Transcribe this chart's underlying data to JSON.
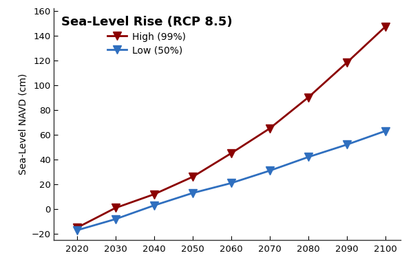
{
  "title": "Sea-Level Rise (RCP 8.5)",
  "ylabel": "Sea-Level NAVD (cm)",
  "years": [
    2020,
    2030,
    2040,
    2050,
    2060,
    2070,
    2080,
    2090,
    2100
  ],
  "high_99": [
    -15,
    1,
    12,
    26,
    45,
    65,
    90,
    118,
    147
  ],
  "low_50": [
    -17,
    -8,
    3,
    13,
    21,
    31,
    42,
    52,
    63
  ],
  "high_color": "#8B0000",
  "low_color": "#2F6FBF",
  "high_label": "High (99%)",
  "low_label": "Low (50%)",
  "ylim": [
    -25,
    162
  ],
  "xlim": [
    2014,
    2104
  ],
  "yticks": [
    -20,
    0,
    20,
    40,
    60,
    80,
    100,
    120,
    140,
    160
  ],
  "xticks": [
    2020,
    2030,
    2040,
    2050,
    2060,
    2070,
    2080,
    2090,
    2100
  ],
  "bg_color": "#FFFFFF",
  "marker": "v",
  "markersize": 9,
  "linewidth": 2.0,
  "title_fontsize": 13,
  "label_fontsize": 10,
  "tick_fontsize": 9.5
}
